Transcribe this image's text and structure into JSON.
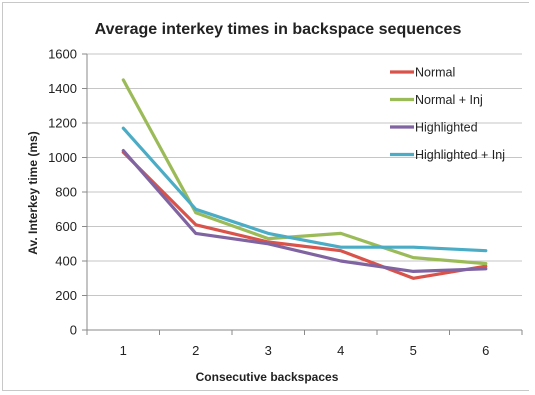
{
  "chart_data": {
    "type": "line",
    "title": "Average interkey times in backspace sequences",
    "xlabel": "Consecutive backspaces",
    "ylabel": "Av. Interkey time (ms)",
    "categories": [
      "1",
      "2",
      "3",
      "4",
      "5",
      "6"
    ],
    "ylim": [
      0,
      1600
    ],
    "yticks": [
      "0",
      "200",
      "400",
      "600",
      "800",
      "1000",
      "1200",
      "1400",
      "1600"
    ],
    "grid": true,
    "legend_position": "top-right",
    "series": [
      {
        "name": "Normal",
        "color": "#d9534a",
        "values": [
          1030,
          610,
          510,
          460,
          300,
          370
        ]
      },
      {
        "name": "Normal + Inj",
        "color": "#9bbb59",
        "values": [
          1450,
          680,
          530,
          560,
          420,
          385
        ]
      },
      {
        "name": "Highlighted",
        "color": "#8064a2",
        "values": [
          1040,
          560,
          500,
          400,
          340,
          355
        ]
      },
      {
        "name": "Highlighted + Inj",
        "color": "#4bacc6",
        "values": [
          1170,
          700,
          560,
          480,
          480,
          460
        ]
      }
    ]
  }
}
